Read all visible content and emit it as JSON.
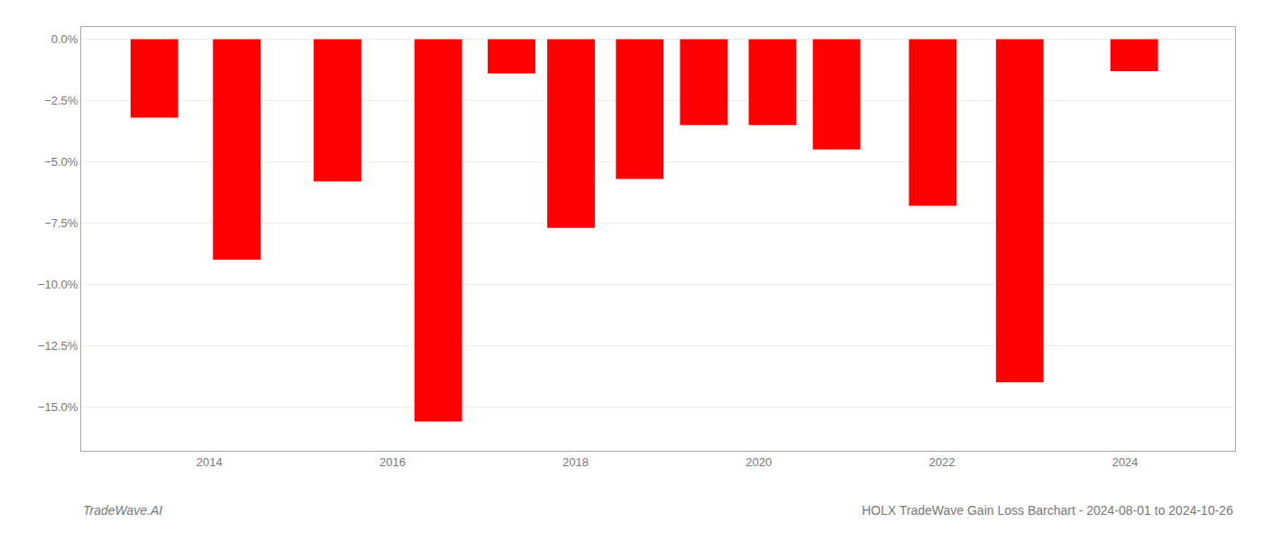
{
  "chart_data": {
    "type": "bar",
    "x": [
      2013.4,
      2014.3,
      2015.4,
      2016.5,
      2017.3,
      2017.95,
      2018.7,
      2019.4,
      2020.15,
      2020.85,
      2021.9,
      2022.85,
      2024.1
    ],
    "values": [
      -3.2,
      -9.0,
      -5.8,
      -15.6,
      -1.4,
      -7.7,
      -5.7,
      -3.5,
      -3.5,
      -4.5,
      -6.8,
      -14.0,
      -1.3
    ],
    "color": "#ff0000",
    "xlim": [
      2012.6,
      2025.2
    ],
    "xticks": [
      2014,
      2016,
      2018,
      2020,
      2022,
      2024
    ],
    "ylim": [
      -16.8,
      0.5
    ],
    "yticks": [
      {
        "value": 0.0,
        "label": "0.0%"
      },
      {
        "value": -2.5,
        "label": "−2.5%"
      },
      {
        "value": -5.0,
        "label": "−5.0%"
      },
      {
        "value": -7.5,
        "label": "−7.5%"
      },
      {
        "value": -10.0,
        "label": "−10.0%"
      },
      {
        "value": -12.5,
        "label": "−12.5%"
      },
      {
        "value": -15.0,
        "label": "−15.0%"
      }
    ],
    "grid": true,
    "annotations": [
      "TradeWave.AI",
      "HOLX TradeWave Gain Loss Barchart - 2024-08-01 to 2024-10-26"
    ]
  }
}
